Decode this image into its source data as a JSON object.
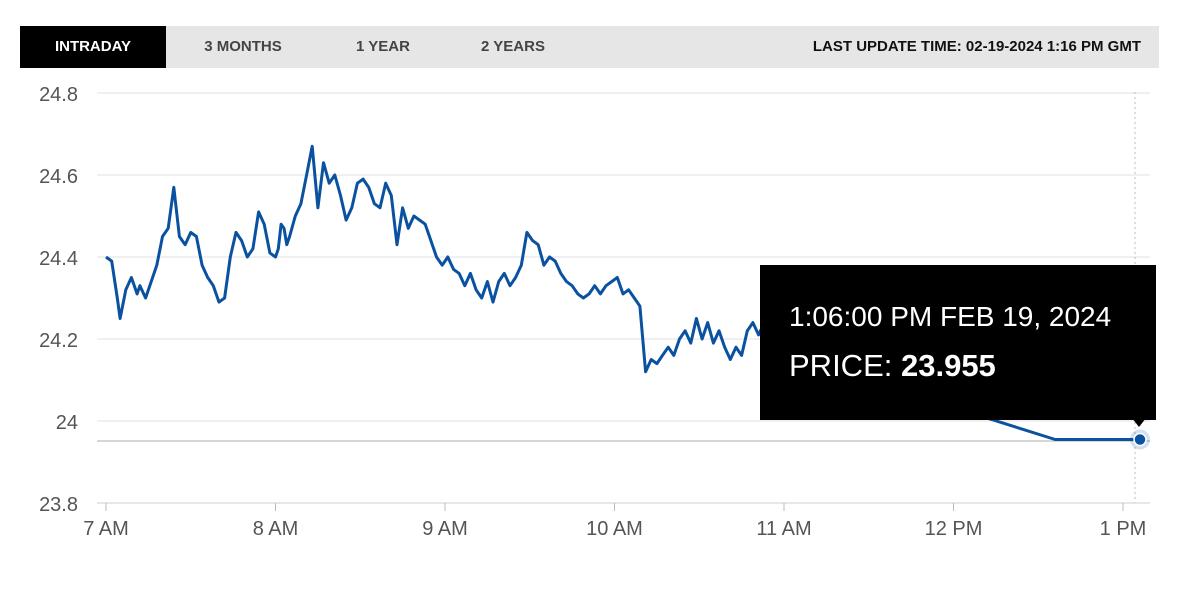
{
  "tabs": [
    {
      "label": "INTRADAY",
      "active": true
    },
    {
      "label": "3 MONTHS",
      "active": false
    },
    {
      "label": "1 YEAR",
      "active": false
    },
    {
      "label": "2 YEARS",
      "active": false
    }
  ],
  "last_update": "LAST UPDATE TIME: 02-19-2024 1:16 PM GMT",
  "tooltip": {
    "time": "1:06:00 PM FEB 19, 2024",
    "price_label": "PRICE:",
    "price_value": "23.955"
  },
  "colors": {
    "line": "#0a52a0",
    "grid": "#e1e1e1",
    "tooltip_bg": "#000000",
    "active_tab": "#000000",
    "tab_bar": "#e6e6e6"
  },
  "chart_data": {
    "type": "line",
    "x_tick_labels": [
      "7 AM",
      "8 AM",
      "9 AM",
      "10 AM",
      "11 AM",
      "12 PM",
      "1 PM"
    ],
    "y_tick_labels": [
      "24.8",
      "24.6",
      "24.4",
      "24.2",
      "24",
      "23.8"
    ],
    "ylim": [
      23.8,
      24.8
    ],
    "xlim": [
      "07:00",
      "13:06"
    ],
    "grid": true,
    "series": [
      {
        "x": [
          "07:00",
          "07:02",
          "07:04",
          "07:05",
          "07:07",
          "07:09",
          "07:11",
          "07:12",
          "07:14",
          "07:16",
          "07:18",
          "07:20",
          "07:22",
          "07:24",
          "07:26",
          "07:28",
          "07:30",
          "07:32",
          "07:34",
          "07:36",
          "07:38",
          "07:40",
          "07:42",
          "07:44",
          "07:46",
          "07:48",
          "07:50",
          "07:52",
          "07:54",
          "07:56",
          "07:58",
          "08:00",
          "08:01",
          "08:02",
          "08:03",
          "08:04",
          "08:05",
          "08:07",
          "08:09",
          "08:11",
          "08:13",
          "08:15",
          "08:17",
          "08:19",
          "08:21",
          "08:23",
          "08:25",
          "08:27",
          "08:29",
          "08:31",
          "08:33",
          "08:35",
          "08:37",
          "08:39",
          "08:41",
          "08:43",
          "08:45",
          "08:47",
          "08:49",
          "08:51",
          "08:53",
          "08:55",
          "08:57",
          "08:59",
          "09:01",
          "09:03",
          "09:05",
          "09:07",
          "09:09",
          "09:11",
          "09:13",
          "09:15",
          "09:17",
          "09:19",
          "09:21",
          "09:23",
          "09:25",
          "09:27",
          "09:29",
          "09:31",
          "09:33",
          "09:35",
          "09:37",
          "09:39",
          "09:41",
          "09:43",
          "09:45",
          "09:47",
          "09:49",
          "09:51",
          "09:53",
          "09:55",
          "09:57",
          "09:59",
          "10:01",
          "10:03",
          "10:05",
          "10:07",
          "10:09",
          "10:11",
          "10:13",
          "10:15",
          "10:17",
          "10:19",
          "10:21",
          "10:23",
          "10:25",
          "10:27",
          "10:29",
          "10:31",
          "10:33",
          "10:35",
          "10:37",
          "10:39",
          "10:41",
          "10:43",
          "10:45",
          "10:47",
          "10:49",
          "10:51",
          "10:53",
          "10:55",
          "10:57",
          "11:06",
          "11:36",
          "12:06",
          "12:36",
          "13:06"
        ],
        "y": [
          24.4,
          24.39,
          24.3,
          24.25,
          24.32,
          24.35,
          24.31,
          24.33,
          24.3,
          24.34,
          24.38,
          24.45,
          24.47,
          24.57,
          24.45,
          24.43,
          24.46,
          24.45,
          24.38,
          24.35,
          24.33,
          24.29,
          24.3,
          24.4,
          24.46,
          24.44,
          24.4,
          24.42,
          24.51,
          24.48,
          24.41,
          24.4,
          24.42,
          24.48,
          24.47,
          24.43,
          24.45,
          24.5,
          24.53,
          24.6,
          24.67,
          24.52,
          24.63,
          24.58,
          24.6,
          24.55,
          24.49,
          24.52,
          24.58,
          24.59,
          24.57,
          24.53,
          24.52,
          24.58,
          24.55,
          24.43,
          24.52,
          24.47,
          24.5,
          24.49,
          24.48,
          24.44,
          24.4,
          24.38,
          24.4,
          24.37,
          24.36,
          24.33,
          24.36,
          24.32,
          24.3,
          24.34,
          24.29,
          24.34,
          24.36,
          24.33,
          24.35,
          24.38,
          24.46,
          24.44,
          24.43,
          24.38,
          24.4,
          24.39,
          24.36,
          24.34,
          24.33,
          24.31,
          24.3,
          24.31,
          24.33,
          24.31,
          24.33,
          24.34,
          24.35,
          24.31,
          24.32,
          24.3,
          24.28,
          24.12,
          24.15,
          24.14,
          24.16,
          24.18,
          24.16,
          24.2,
          24.22,
          24.19,
          24.25,
          24.2,
          24.24,
          24.19,
          24.22,
          24.18,
          24.15,
          24.18,
          24.16,
          24.22,
          24.24,
          24.21,
          24.24,
          24.22,
          24.26,
          24.26,
          24.13,
          24.02,
          23.955,
          23.955
        ]
      }
    ],
    "highlight_point": {
      "x": "13:06",
      "y": 23.955
    }
  }
}
